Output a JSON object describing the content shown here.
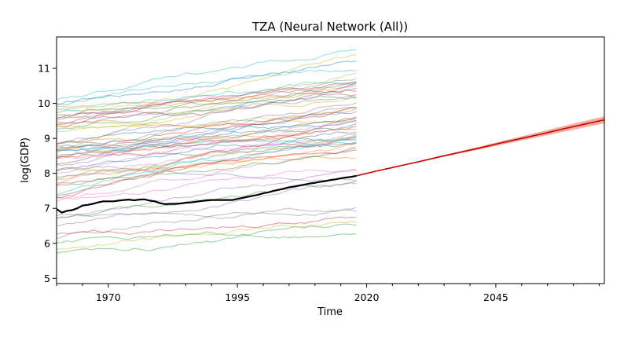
{
  "chart_data": {
    "type": "line",
    "title": "TZA (Neural Network (All))",
    "xlabel": "Time",
    "ylabel": "log(GDP)",
    "xlim": [
      1960,
      2066
    ],
    "ylim": [
      4.85,
      11.9
    ],
    "x_ticks": [
      1970,
      1995,
      2020,
      2045
    ],
    "y_ticks": [
      5,
      6,
      7,
      8,
      9,
      10,
      11
    ],
    "grid": false,
    "legend": "none",
    "background_series": {
      "count": 60,
      "x_range": [
        1960,
        2018
      ],
      "y_band": [
        5.7,
        11.4
      ],
      "opacity": 0.45,
      "colors": [
        "#1f77b4",
        "#ff7f0e",
        "#2ca02c",
        "#d62728",
        "#9467bd",
        "#8c564b",
        "#e377c2",
        "#7f7f7f",
        "#bcbd22",
        "#17becf"
      ]
    },
    "series": [
      {
        "color": "#000000",
        "x": [
          1960,
          1961,
          1962,
          1963,
          1964,
          1965,
          1966,
          1967,
          1968,
          1969,
          1970,
          1971,
          1972,
          1973,
          1974,
          1975,
          1976,
          1977,
          1978,
          1979,
          1980,
          1981,
          1982,
          1983,
          1984,
          1985,
          1986,
          1987,
          1988,
          1989,
          1990,
          1991,
          1992,
          1993,
          1994,
          1995,
          1996,
          1997,
          1998,
          1999,
          2000,
          2001,
          2002,
          2003,
          2004,
          2005,
          2006,
          2007,
          2008,
          2009,
          2010,
          2011,
          2012,
          2013,
          2014,
          2015,
          2016,
          2017,
          2018
        ],
        "values": [
          6.98,
          6.88,
          6.93,
          6.95,
          7.0,
          7.08,
          7.1,
          7.13,
          7.17,
          7.2,
          7.2,
          7.2,
          7.22,
          7.24,
          7.25,
          7.23,
          7.25,
          7.26,
          7.22,
          7.2,
          7.15,
          7.12,
          7.13,
          7.13,
          7.14,
          7.16,
          7.17,
          7.19,
          7.21,
          7.23,
          7.24,
          7.24,
          7.24,
          7.24,
          7.24,
          7.27,
          7.3,
          7.33,
          7.36,
          7.39,
          7.43,
          7.46,
          7.5,
          7.53,
          7.56,
          7.6,
          7.62,
          7.65,
          7.68,
          7.71,
          7.73,
          7.76,
          7.78,
          7.81,
          7.83,
          7.86,
          7.88,
          7.9,
          7.93
        ]
      },
      {
        "color": "#cc0000",
        "x": [
          2018,
          2022,
          2026,
          2030,
          2034,
          2038,
          2042,
          2046,
          2050,
          2054,
          2058,
          2062,
          2066
        ],
        "values": [
          7.93,
          8.07,
          8.2,
          8.33,
          8.47,
          8.6,
          8.73,
          8.87,
          9.0,
          9.13,
          9.27,
          9.4,
          9.53
        ],
        "band_halfwidth": [
          0.0,
          0.01,
          0.01,
          0.02,
          0.02,
          0.03,
          0.04,
          0.05,
          0.06,
          0.07,
          0.08,
          0.09,
          0.1
        ]
      }
    ]
  }
}
